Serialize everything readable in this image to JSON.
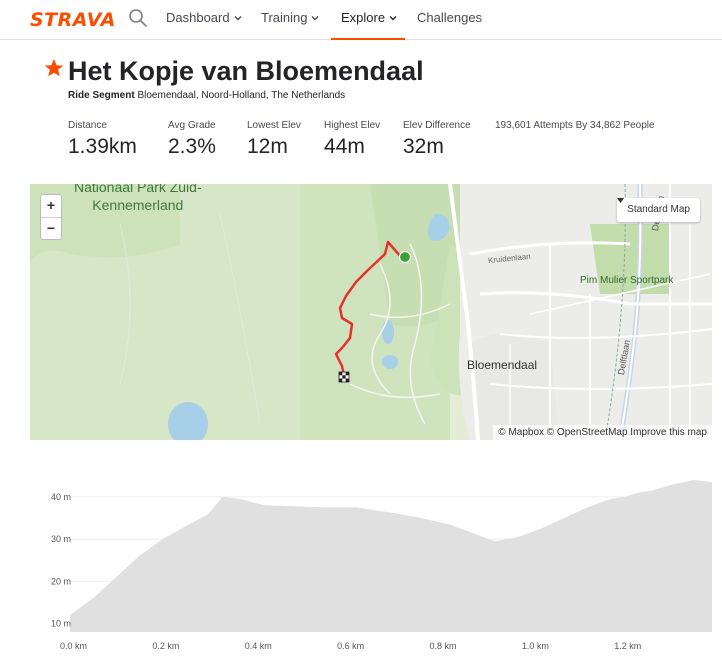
{
  "nav": {
    "logo": "STRAVA",
    "items": [
      {
        "label": "Dashboard",
        "has_chevron": true
      },
      {
        "label": "Training",
        "has_chevron": true
      },
      {
        "label": "Explore",
        "has_chevron": true,
        "active": true
      },
      {
        "label": "Challenges",
        "has_chevron": false
      }
    ],
    "search_icon": "search-icon"
  },
  "segment": {
    "title": "Het Kopje van Bloemendaal",
    "type_label": "Ride Segment",
    "location": "Bloemendaal, Noord-Holland, The Netherlands",
    "star_icon": "star-icon",
    "stats": [
      {
        "label": "Distance",
        "value": "1.39km"
      },
      {
        "label": "Avg Grade",
        "value": "2.3%"
      },
      {
        "label": "Lowest Elev",
        "value": "12m"
      },
      {
        "label": "Highest Elev",
        "value": "44m"
      },
      {
        "label": "Elev Difference",
        "value": "32m"
      }
    ],
    "attempts": "193,601 Attempts By 34,862 People"
  },
  "map": {
    "zoom_in": "+",
    "zoom_out": "−",
    "style_selector": "Standard Map",
    "attribution": "© Mapbox © OpenStreetMap Improve this map",
    "labels": {
      "park": "Nationaal Park Zuid-Kennemerland",
      "park_line1": "Nationaal Park Zuid-",
      "park_line2": "Kennemerland",
      "kruidenlaan": "Kruidenlaan",
      "sportpark": "Pim Mulier Sportpark",
      "town": "Bloemendaal",
      "delftlaan": "Delftlaan",
      "delftlaan2": "Delftlaan"
    },
    "colors": {
      "route": "#e8302a",
      "start": "#3aa13a",
      "land": "#e4ecd8",
      "park": "#cfe3bf",
      "water": "#a8cfe8",
      "road": "#ffffff"
    }
  },
  "chart_data": {
    "type": "area",
    "x_unit": "km",
    "y_unit": "m",
    "xlim": [
      0,
      1.39
    ],
    "ylim": [
      8,
      44
    ],
    "x_ticks": [
      "0.0 km",
      "0.2 km",
      "0.4 km",
      "0.6 km",
      "0.8 km",
      "1.0 km",
      "1.2 km"
    ],
    "x_tick_values": [
      0,
      0.2,
      0.4,
      0.6,
      0.8,
      1.0,
      1.2
    ],
    "y_ticks": [
      "10 m",
      "20 m",
      "30 m",
      "40 m"
    ],
    "y_tick_values": [
      10,
      20,
      30,
      40
    ],
    "x": [
      0,
      0.05,
      0.1,
      0.15,
      0.2,
      0.25,
      0.3,
      0.33,
      0.37,
      0.42,
      0.48,
      0.55,
      0.62,
      0.7,
      0.76,
      0.82,
      0.87,
      0.92,
      0.97,
      1.02,
      1.07,
      1.12,
      1.17,
      1.2,
      1.23,
      1.26,
      1.3,
      1.35,
      1.39
    ],
    "y": [
      12,
      16,
      21,
      26,
      30,
      33,
      36,
      40,
      39.5,
      38,
      37.8,
      37.5,
      37.5,
      36.2,
      35,
      33.5,
      31.5,
      29.5,
      30.5,
      32.5,
      35,
      37.5,
      39.5,
      40,
      41,
      41.5,
      42.8,
      44,
      43.5
    ],
    "colors": {
      "fill": "#e0e0e0",
      "grid": "#eeeeee",
      "label": "#555555"
    }
  }
}
